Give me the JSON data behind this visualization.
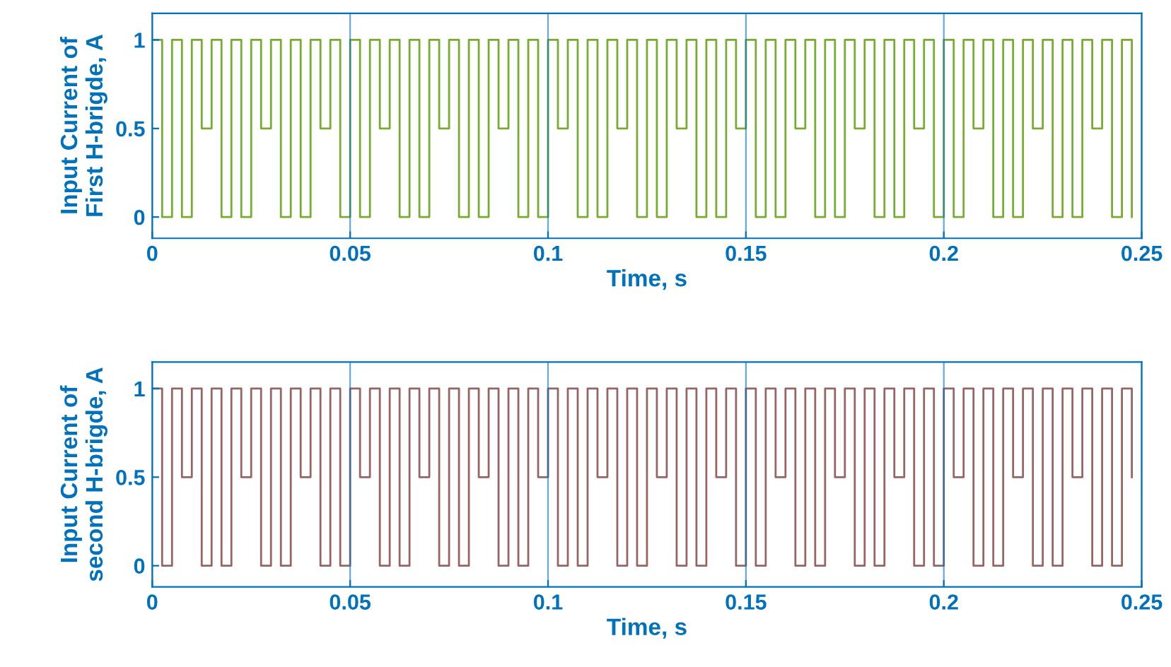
{
  "chart_data": [
    {
      "type": "step",
      "xlabel": "Time, s",
      "ylabel": "Input Current of\nFirst H-brigde, A",
      "xlim": [
        0,
        0.25
      ],
      "ylim": [
        -0.12,
        1.15
      ],
      "xticks": [
        0,
        0.05,
        0.1,
        0.15,
        0.2,
        0.25
      ],
      "yticks": [
        0,
        0.5,
        1
      ],
      "grid": "x",
      "x": [
        0,
        0.0025,
        0.005,
        0.0075,
        0.01,
        0.0125,
        0.015,
        0.0175,
        0.02,
        0.0225,
        0.025,
        0.0275,
        0.03,
        0.0325,
        0.035,
        0.0375,
        0.04,
        0.0425,
        0.045,
        0.0475,
        0.05,
        0.0525,
        0.055,
        0.0575,
        0.06,
        0.0625,
        0.065,
        0.0675,
        0.07,
        0.0725,
        0.075,
        0.0775,
        0.08,
        0.0825,
        0.085,
        0.0875,
        0.09,
        0.0925,
        0.095,
        0.0975,
        0.1,
        0.1025,
        0.105,
        0.1075,
        0.11,
        0.1125,
        0.115,
        0.1175,
        0.12,
        0.1225,
        0.125,
        0.1275,
        0.13,
        0.1325,
        0.135,
        0.1375,
        0.14,
        0.1425,
        0.145,
        0.1475,
        0.15,
        0.1525,
        0.155,
        0.1575,
        0.16,
        0.1625,
        0.165,
        0.1675,
        0.17,
        0.1725,
        0.175,
        0.1775,
        0.18,
        0.1825,
        0.185,
        0.1875,
        0.19,
        0.1925,
        0.195,
        0.1975,
        0.2,
        0.2025,
        0.205,
        0.2075,
        0.21,
        0.2125,
        0.215,
        0.2175,
        0.22,
        0.2225,
        0.225,
        0.2275,
        0.23,
        0.2325,
        0.235,
        0.2375,
        0.24,
        0.2425,
        0.245,
        0.2475
      ],
      "series": [
        {
          "color": "#77ac30",
          "values": [
            1,
            0,
            1,
            0,
            1,
            0.5,
            1,
            0,
            1,
            0,
            1,
            0.5,
            1,
            0,
            1,
            0,
            1,
            0.5,
            1,
            0,
            1,
            0,
            1,
            0.5,
            1,
            0,
            1,
            0,
            1,
            0.5,
            1,
            0,
            1,
            0,
            1,
            0.5,
            1,
            0,
            1,
            0,
            1,
            0.5,
            1,
            0,
            1,
            0,
            1,
            0.5,
            1,
            0,
            1,
            0,
            1,
            0.5,
            1,
            0,
            1,
            0,
            1,
            0.5,
            1,
            0,
            1,
            0,
            1,
            0.5,
            1,
            0,
            1,
            0,
            1,
            0.5,
            1,
            0,
            1,
            0,
            1,
            0.5,
            1,
            0,
            1,
            0,
            1,
            0.5,
            1,
            0,
            1,
            0,
            1,
            0.5,
            1,
            0,
            1,
            0,
            1,
            0.5,
            1,
            0,
            1,
            0
          ]
        }
      ]
    },
    {
      "type": "step",
      "xlabel": "Time, s",
      "ylabel": "Input Current of\nsecond H-brigde, A",
      "xlim": [
        0,
        0.25
      ],
      "ylim": [
        -0.12,
        1.15
      ],
      "xticks": [
        0,
        0.05,
        0.1,
        0.15,
        0.2,
        0.25
      ],
      "yticks": [
        0,
        0.5,
        1
      ],
      "grid": "x",
      "x": [
        0,
        0.0025,
        0.005,
        0.0075,
        0.01,
        0.0125,
        0.015,
        0.0175,
        0.02,
        0.0225,
        0.025,
        0.0275,
        0.03,
        0.0325,
        0.035,
        0.0375,
        0.04,
        0.0425,
        0.045,
        0.0475,
        0.05,
        0.0525,
        0.055,
        0.0575,
        0.06,
        0.0625,
        0.065,
        0.0675,
        0.07,
        0.0725,
        0.075,
        0.0775,
        0.08,
        0.0825,
        0.085,
        0.0875,
        0.09,
        0.0925,
        0.095,
        0.0975,
        0.1,
        0.1025,
        0.105,
        0.1075,
        0.11,
        0.1125,
        0.115,
        0.1175,
        0.12,
        0.1225,
        0.125,
        0.1275,
        0.13,
        0.1325,
        0.135,
        0.1375,
        0.14,
        0.1425,
        0.145,
        0.1475,
        0.15,
        0.1525,
        0.155,
        0.1575,
        0.16,
        0.1625,
        0.165,
        0.1675,
        0.17,
        0.1725,
        0.175,
        0.1775,
        0.18,
        0.1825,
        0.185,
        0.1875,
        0.19,
        0.1925,
        0.195,
        0.1975,
        0.2,
        0.2025,
        0.205,
        0.2075,
        0.21,
        0.2125,
        0.215,
        0.2175,
        0.22,
        0.2225,
        0.225,
        0.2275,
        0.23,
        0.2325,
        0.235,
        0.2375,
        0.24,
        0.2425,
        0.245,
        0.2475
      ],
      "series": [
        {
          "color": "#956564",
          "values": [
            1,
            0,
            1,
            0.5,
            1,
            0,
            1,
            0,
            1,
            0.5,
            1,
            0,
            1,
            0,
            1,
            0.5,
            1,
            0,
            1,
            0,
            1,
            0.5,
            1,
            0,
            1,
            0,
            1,
            0.5,
            1,
            0,
            1,
            0,
            1,
            0.5,
            1,
            0,
            1,
            0,
            1,
            0.5,
            1,
            0,
            1,
            0,
            1,
            0.5,
            1,
            0,
            1,
            0,
            1,
            0.5,
            1,
            0,
            1,
            0,
            1,
            0.5,
            1,
            0,
            1,
            0,
            1,
            0.5,
            1,
            0,
            1,
            0,
            1,
            0.5,
            1,
            0,
            1,
            0,
            1,
            0.5,
            1,
            0,
            1,
            0,
            1,
            0.5,
            1,
            0,
            1,
            0,
            1,
            0.5,
            1,
            0,
            1,
            0,
            1,
            0.5,
            1,
            0,
            1,
            0,
            1,
            0.5
          ]
        }
      ]
    }
  ]
}
